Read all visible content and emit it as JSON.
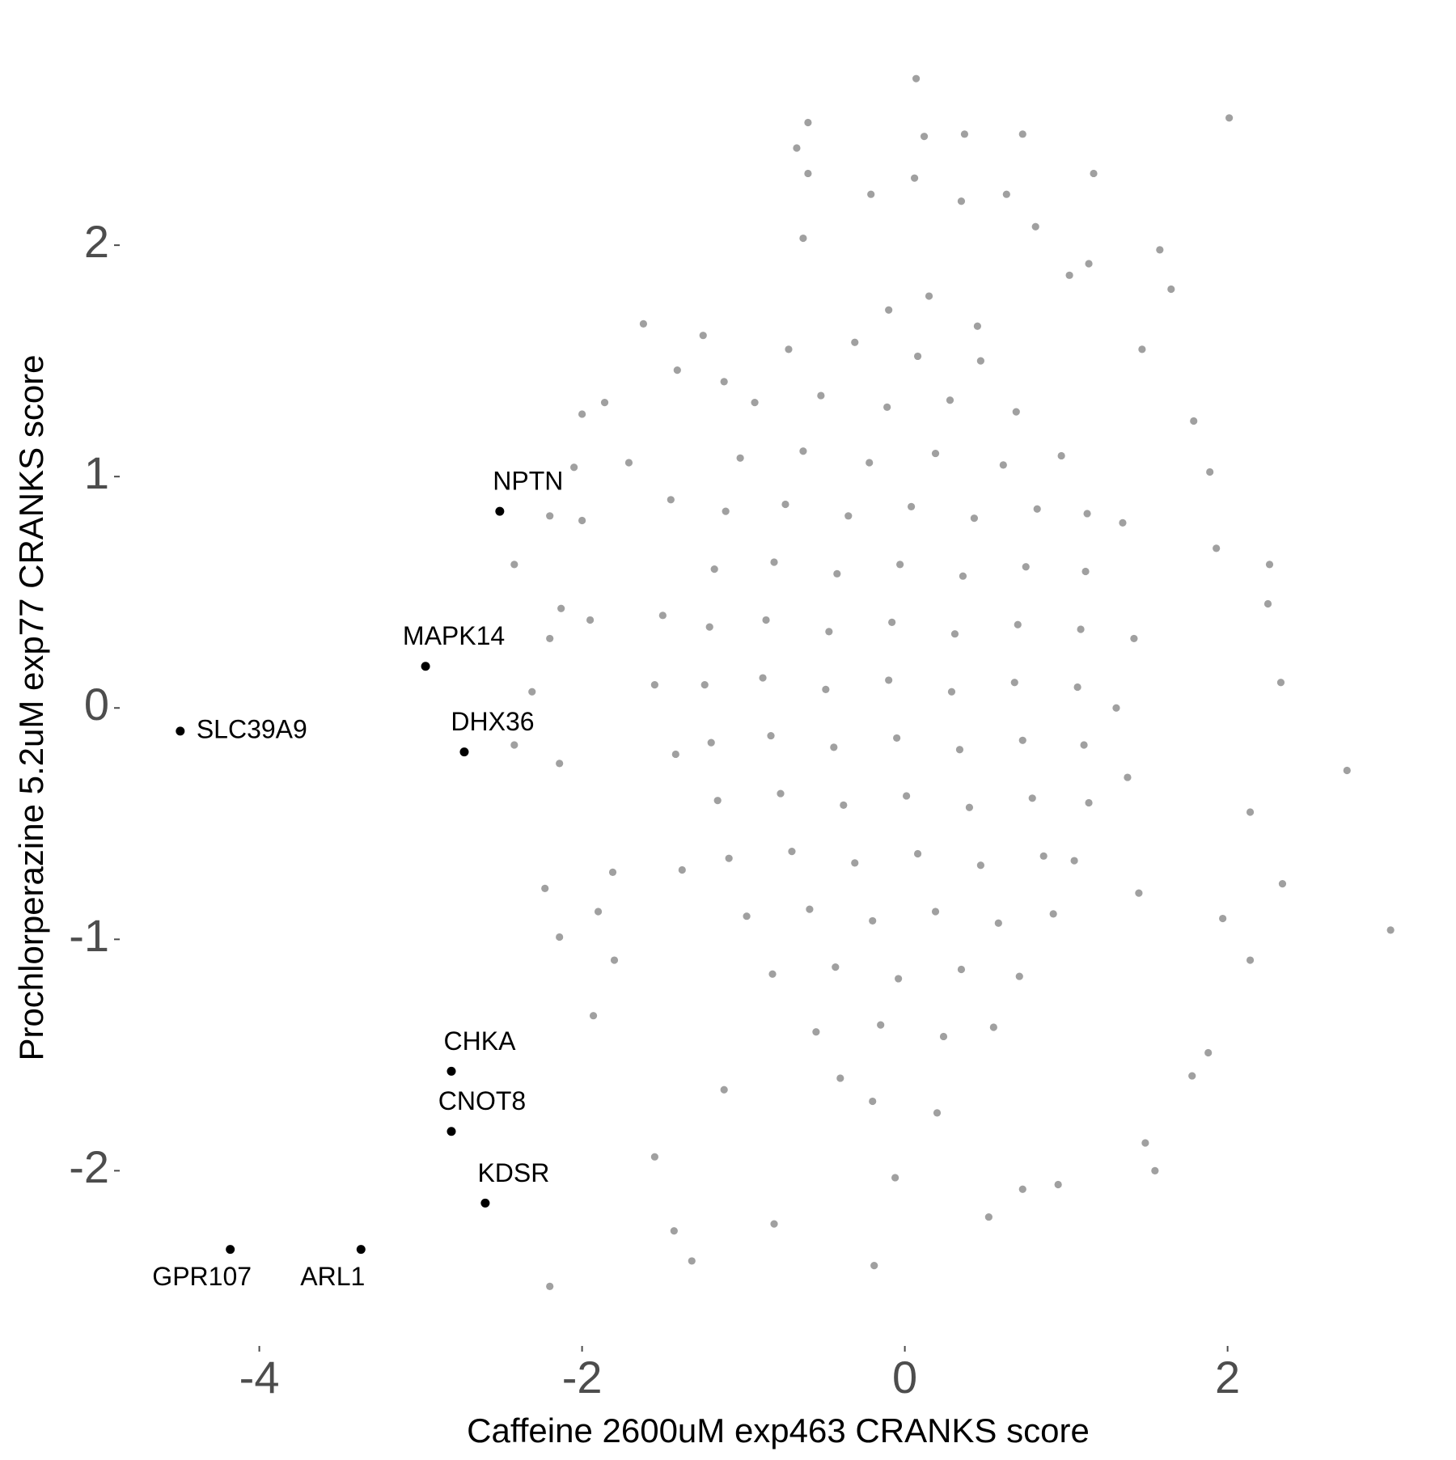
{
  "chart_data": {
    "type": "scatter",
    "xlabel": "Caffeine 2600uM exp463 CRANKS score",
    "ylabel": "Prochlorperazine 5.2uM exp77 CRANKS score",
    "xlim": [
      -4.85,
      3.28
    ],
    "ylim": [
      -2.6,
      2.78
    ],
    "xticks": [
      -4,
      -2,
      0,
      2
    ],
    "yticks": [
      -2,
      -1,
      0,
      1,
      2
    ],
    "grid": false,
    "series": [
      {
        "color": "#a0a0a0",
        "x": [
          0.07,
          -0.6,
          2.01,
          0.73,
          0.37,
          0.12,
          -0.67,
          -0.6,
          0.06,
          1.17,
          -0.21,
          0.35,
          0.63,
          0.81,
          -0.63,
          1.58,
          1.65,
          -1.62,
          -2.0,
          -1.86,
          -2.05,
          -1.71,
          -2.2,
          -2.0,
          -2.42,
          -2.13,
          -1.95,
          -2.2,
          -2.31,
          -2.42,
          -2.14,
          -2.23,
          -2.14,
          -1.93,
          -2.2,
          -1.32,
          -1.43,
          -0.81,
          -0.19,
          0.52,
          0.95,
          1.55,
          1.49,
          1.88,
          2.14,
          2.34,
          2.14,
          2.74,
          3.01,
          2.33,
          2.25,
          2.26,
          1.93,
          1.89,
          1.79,
          1.47,
          1.02,
          1.14,
          -1.55,
          -1.8,
          -1.9,
          -1.81,
          -1.12,
          -1.25,
          -1.41,
          1.97,
          1.78,
          -1.12,
          -0.06,
          0.73,
          -0.72,
          -0.31,
          0.08,
          0.47,
          -0.93,
          -0.52,
          -0.11,
          0.28,
          0.69,
          -1.02,
          -0.63,
          -0.22,
          0.19,
          0.61,
          0.97,
          -1.11,
          -0.74,
          -0.35,
          0.04,
          0.43,
          0.82,
          1.13,
          -1.18,
          -0.81,
          -0.42,
          -0.03,
          0.36,
          0.75,
          1.12,
          -1.21,
          -0.86,
          -0.47,
          -0.08,
          0.31,
          0.7,
          1.09,
          -1.24,
          -0.88,
          -0.49,
          -0.1,
          0.29,
          0.68,
          1.07,
          -1.2,
          -0.83,
          -0.44,
          -0.05,
          0.34,
          0.73,
          1.11,
          -1.16,
          -0.77,
          -0.38,
          0.01,
          0.4,
          0.79,
          1.14,
          -1.09,
          -0.7,
          -0.31,
          0.08,
          0.47,
          0.86,
          1.05,
          -0.98,
          -0.59,
          -0.2,
          0.19,
          0.58,
          0.92,
          -0.82,
          -0.43,
          -0.04,
          0.35,
          0.71,
          -0.55,
          -0.15,
          0.24,
          0.55,
          -1.45,
          -1.5,
          -1.42,
          -1.38,
          -1.55,
          1.35,
          1.42,
          1.38,
          1.45,
          1.31,
          -0.2,
          0.2,
          -0.1,
          0.15,
          -0.4,
          0.45
        ],
        "y": [
          2.72,
          2.53,
          2.55,
          2.48,
          2.48,
          2.47,
          2.42,
          2.31,
          2.29,
          2.31,
          2.22,
          2.19,
          2.22,
          2.08,
          2.03,
          1.98,
          1.81,
          1.66,
          1.27,
          1.32,
          1.04,
          1.06,
          0.83,
          0.81,
          0.62,
          0.43,
          0.38,
          0.3,
          0.07,
          -0.16,
          -0.24,
          -0.78,
          -0.99,
          -1.33,
          -2.5,
          -2.39,
          -2.26,
          -2.23,
          -2.41,
          -2.2,
          -2.06,
          -2.0,
          -1.88,
          -1.49,
          -1.09,
          -0.76,
          -0.45,
          -0.27,
          -0.96,
          0.11,
          0.45,
          0.62,
          0.69,
          1.02,
          1.24,
          1.55,
          1.87,
          1.92,
          -1.94,
          -1.09,
          -0.88,
          -0.71,
          1.41,
          1.61,
          1.46,
          -0.91,
          -1.59,
          -1.65,
          -2.03,
          -2.08,
          1.55,
          1.58,
          1.52,
          1.5,
          1.32,
          1.35,
          1.3,
          1.33,
          1.28,
          1.08,
          1.11,
          1.06,
          1.1,
          1.05,
          1.09,
          0.85,
          0.88,
          0.83,
          0.87,
          0.82,
          0.86,
          0.84,
          0.6,
          0.63,
          0.58,
          0.62,
          0.57,
          0.61,
          0.59,
          0.35,
          0.38,
          0.33,
          0.37,
          0.32,
          0.36,
          0.34,
          0.1,
          0.13,
          0.08,
          0.12,
          0.07,
          0.11,
          0.09,
          -0.15,
          -0.12,
          -0.17,
          -0.13,
          -0.18,
          -0.14,
          -0.16,
          -0.4,
          -0.37,
          -0.42,
          -0.38,
          -0.43,
          -0.39,
          -0.41,
          -0.65,
          -0.62,
          -0.67,
          -0.63,
          -0.68,
          -0.64,
          -0.66,
          -0.9,
          -0.87,
          -0.92,
          -0.88,
          -0.93,
          -0.89,
          -1.15,
          -1.12,
          -1.17,
          -1.13,
          -1.16,
          -1.4,
          -1.37,
          -1.42,
          -1.38,
          0.9,
          0.4,
          -0.2,
          -0.7,
          0.1,
          0.8,
          0.3,
          -0.3,
          -0.8,
          0.0,
          -1.7,
          -1.75,
          1.72,
          1.78,
          -1.6,
          1.65
        ]
      },
      {
        "color": "#000000",
        "x": [
          -2.51,
          -2.97,
          -4.49,
          -2.73,
          -2.81,
          -2.81,
          -2.6,
          -4.18,
          -3.37
        ],
        "y": [
          0.85,
          0.18,
          -0.1,
          -0.19,
          -1.57,
          -1.83,
          -2.14,
          -2.34,
          -2.34
        ],
        "labels": [
          "NPTN",
          "MAPK14",
          "SLC39A9",
          "DHX36",
          "CHKA",
          "CNOT8",
          "KDSR",
          "GPR107",
          "ARL1"
        ]
      }
    ]
  }
}
